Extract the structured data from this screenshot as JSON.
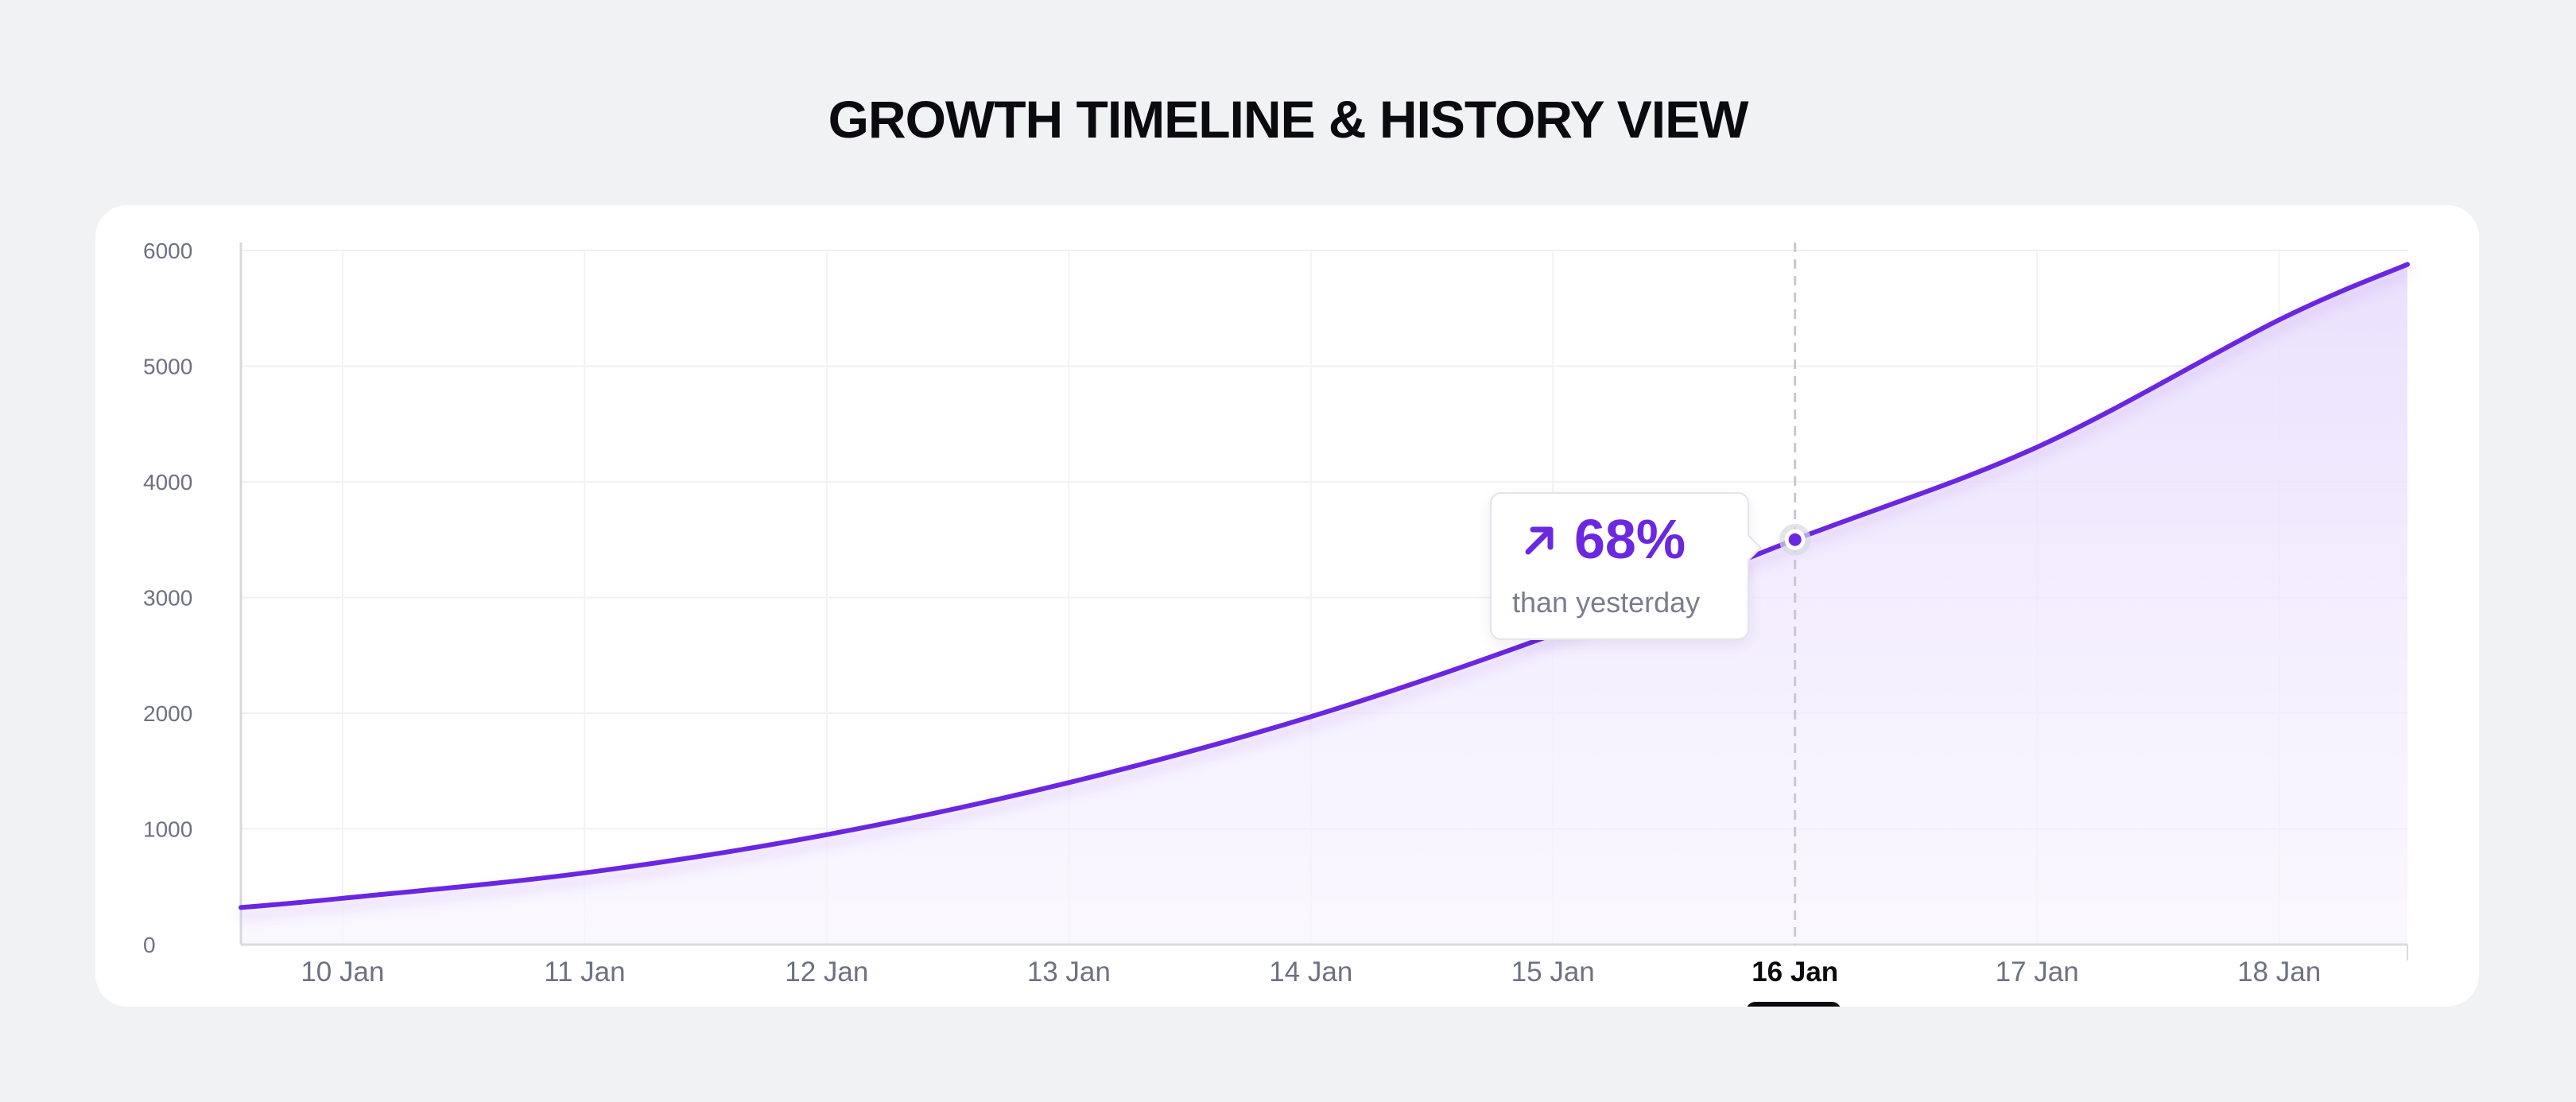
{
  "title": "GROWTH TIMELINE & HISTORY VIEW",
  "tooltip": {
    "value": "68%",
    "subtitle": "than yesterday",
    "icon": "arrow-up-right-icon"
  },
  "colors": {
    "accent": "#6b28e0",
    "background": "#f1f2f4",
    "card": "#ffffff",
    "text_muted": "#6e7180",
    "text_dark": "#0b0b0f"
  },
  "chart_data": {
    "type": "area",
    "title": "GROWTH TIMELINE & HISTORY VIEW",
    "xlabel": "",
    "ylabel": "",
    "categories": [
      "10 Jan",
      "11 Jan",
      "12 Jan",
      "13 Jan",
      "14 Jan",
      "15 Jan",
      "16 Jan",
      "17 Jan",
      "18 Jan"
    ],
    "active_category": "16 Jan",
    "yticks": [
      0,
      1000,
      2000,
      3000,
      4000,
      5000,
      6000
    ],
    "ylim": [
      0,
      6000
    ],
    "xlim": [
      9.58,
      18.53
    ],
    "series": [
      {
        "name": "Growth",
        "points": [
          {
            "x": 9.58,
            "y": 320
          },
          {
            "x": 10,
            "y": 400
          },
          {
            "x": 11,
            "y": 620
          },
          {
            "x": 12,
            "y": 950
          },
          {
            "x": 13,
            "y": 1400
          },
          {
            "x": 14,
            "y": 1970
          },
          {
            "x": 15,
            "y": 2680
          },
          {
            "x": 16,
            "y": 3500
          },
          {
            "x": 17,
            "y": 4300
          },
          {
            "x": 18,
            "y": 5400
          },
          {
            "x": 18.53,
            "y": 5880
          }
        ]
      }
    ],
    "highlight": {
      "x": 16,
      "y": 3500,
      "label": "68%"
    },
    "grid": true,
    "legend": "none"
  }
}
